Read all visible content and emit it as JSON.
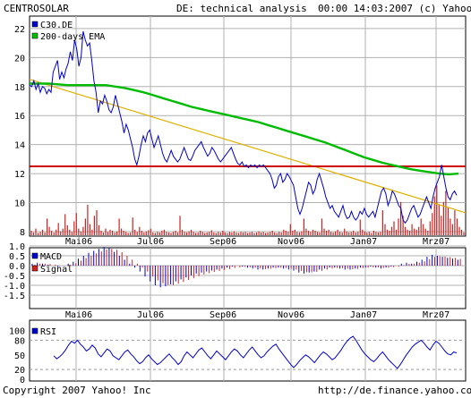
{
  "header": {
    "company": "CENTROSOLAR",
    "title": "DE: technical analysis",
    "timestamp": "00:00 14:03:2007 (c) Yahoo!"
  },
  "footer": {
    "copyright": "Copyright 2007 Yahoo! Inc",
    "url": "http://de.finance.yahoo.com/"
  },
  "colors": {
    "price": "#0000cc",
    "ema": "#00bb00",
    "trend": "#e0b000",
    "resistance": "#cc0000",
    "volume": "#cc2222",
    "macd": "#0000cc",
    "signal": "#cc2222",
    "grid": "#b0b0b0"
  },
  "chart_data": [
    {
      "type": "line",
      "x_tick_labels": [
        "Mai06",
        "Jul06",
        "Sep06",
        "Nov06",
        "Jan07",
        "Mrz07"
      ],
      "ylim": [
        8,
        22.5
      ],
      "y_ticks": [
        8,
        10,
        12,
        14,
        16,
        18,
        20,
        22
      ],
      "grid": true,
      "legend_position": "top-left",
      "series": [
        {
          "name": "C30.DE",
          "kind": "price",
          "values": [
            18.1,
            18.0,
            18.4,
            17.8,
            18.2,
            17.6,
            18.0,
            17.9,
            17.5,
            17.8,
            17.6,
            19.0,
            19.4,
            19.8,
            18.5,
            19.0,
            18.6,
            19.2,
            19.6,
            20.4,
            19.8,
            21.2,
            20.6,
            19.4,
            20.0,
            21.8,
            21.2,
            20.8,
            21.0,
            19.8,
            18.4,
            17.6,
            16.2,
            17.0,
            16.8,
            17.4,
            17.0,
            16.4,
            16.2,
            16.6,
            17.4,
            16.8,
            16.2,
            15.6,
            14.8,
            15.4,
            15.0,
            14.4,
            13.8,
            13.0,
            12.6,
            13.2,
            14.0,
            14.6,
            14.2,
            14.8,
            15.0,
            14.4,
            13.8,
            14.2,
            14.6,
            14.0,
            13.4,
            13.0,
            12.8,
            13.2,
            13.6,
            13.2,
            13.0,
            12.8,
            13.0,
            13.4,
            13.8,
            13.4,
            13.0,
            12.9,
            13.2,
            13.6,
            13.8,
            14.0,
            14.2,
            13.8,
            13.5,
            13.2,
            13.4,
            13.8,
            13.6,
            13.3,
            13.0,
            12.8,
            13.0,
            13.2,
            13.4,
            13.6,
            13.8,
            13.4,
            13.0,
            12.7,
            12.6,
            12.8,
            12.5,
            12.6,
            12.4,
            12.6,
            12.5,
            12.6,
            12.4,
            12.6,
            12.5,
            12.6,
            12.4,
            12.2,
            12.0,
            11.6,
            11.0,
            11.2,
            11.8,
            12.0,
            11.4,
            11.6,
            12.0,
            11.8,
            11.5,
            11.2,
            10.4,
            9.6,
            9.2,
            9.6,
            10.2,
            10.8,
            11.4,
            11.2,
            10.6,
            10.9,
            11.6,
            12.0,
            11.5,
            11.0,
            10.4,
            10.0,
            9.6,
            9.8,
            9.4,
            9.2,
            9.0,
            9.4,
            9.8,
            9.2,
            8.9,
            9.0,
            9.4,
            9.0,
            8.8,
            9.0,
            9.4,
            9.2,
            9.6,
            9.2,
            9.0,
            9.2,
            9.4,
            9.0,
            9.6,
            10.2,
            10.8,
            11.0,
            10.6,
            9.8,
            10.2,
            10.8,
            10.6,
            10.2,
            9.8,
            9.6,
            8.8,
            8.6,
            8.8,
            9.2,
            9.6,
            9.8,
            9.4,
            9.0,
            9.2,
            9.6,
            10.0,
            10.4,
            10.0,
            9.6,
            10.4,
            11.0,
            11.4,
            11.8,
            12.6,
            11.8,
            11.0,
            10.4,
            10.2,
            10.6,
            10.8,
            10.5
          ]
        },
        {
          "name": "200-days EMA",
          "kind": "ema",
          "values": [
            18.2,
            18.2,
            18.2,
            18.15,
            18.1,
            18.1,
            18.1,
            18.1,
            18.1,
            18.0,
            17.9,
            17.75,
            17.6,
            17.4,
            17.2,
            17.0,
            16.8,
            16.6,
            16.45,
            16.3,
            16.15,
            16.0,
            15.85,
            15.7,
            15.55,
            15.35,
            15.15,
            14.95,
            14.75,
            14.55,
            14.35,
            14.15,
            13.9,
            13.65,
            13.4,
            13.15,
            12.95,
            12.75,
            12.6,
            12.45,
            12.3,
            12.2,
            12.1,
            12.0,
            11.95,
            12.0
          ]
        }
      ],
      "resistance_level": 12.5,
      "trendline": [
        18.5,
        9.3
      ]
    },
    {
      "type": "bar",
      "name": "volume",
      "unit": "relative",
      "values": [
        0.08,
        0.05,
        0.12,
        0.04,
        0.06,
        0.1,
        0.05,
        0.3,
        0.15,
        0.08,
        0.05,
        0.1,
        0.22,
        0.07,
        0.12,
        0.38,
        0.18,
        0.1,
        0.06,
        0.25,
        0.4,
        0.12,
        0.07,
        0.15,
        0.3,
        0.55,
        0.2,
        0.1,
        0.35,
        0.45,
        0.18,
        0.08,
        0.05,
        0.12,
        0.06,
        0.1,
        0.08,
        0.05,
        0.07,
        0.3,
        0.12,
        0.08,
        0.06,
        0.04,
        0.05,
        0.32,
        0.1,
        0.06,
        0.15,
        0.08,
        0.05,
        0.07,
        0.09,
        0.12,
        0.05,
        0.04,
        0.06,
        0.05,
        0.08,
        0.1,
        0.06,
        0.05,
        0.04,
        0.06,
        0.08,
        0.05,
        0.35,
        0.1,
        0.06,
        0.05,
        0.07,
        0.1,
        0.06,
        0.04,
        0.05,
        0.08,
        0.06,
        0.04,
        0.05,
        0.06,
        0.09,
        0.05,
        0.04,
        0.06,
        0.05,
        0.08,
        0.05,
        0.04,
        0.06,
        0.05,
        0.07,
        0.05,
        0.04,
        0.06,
        0.05,
        0.06,
        0.04,
        0.05,
        0.06,
        0.04,
        0.05,
        0.07,
        0.05,
        0.06,
        0.04,
        0.05,
        0.06,
        0.08,
        0.05,
        0.04,
        0.06,
        0.05,
        0.1,
        0.08,
        0.06,
        0.2,
        0.08,
        0.1,
        0.06,
        0.05,
        0.07,
        0.3,
        0.12,
        0.08,
        0.06,
        0.1,
        0.08,
        0.06,
        0.05,
        0.3,
        0.12,
        0.08,
        0.1,
        0.06,
        0.05,
        0.07,
        0.1,
        0.06,
        0.05,
        0.12,
        0.07,
        0.05,
        0.06,
        0.08,
        0.05,
        0.06,
        0.28,
        0.1,
        0.07,
        0.05,
        0.06,
        0.04,
        0.08,
        0.06,
        0.05,
        0.06,
        0.45,
        0.2,
        0.1,
        0.08,
        0.15,
        0.25,
        0.1,
        0.3,
        0.6,
        0.35,
        0.15,
        0.1,
        0.08,
        0.2,
        0.12,
        0.1,
        0.15,
        0.3,
        0.2,
        0.12,
        0.08,
        0.25,
        0.4,
        0.7,
        0.9,
        0.55,
        0.35,
        0.6,
        0.8,
        0.5,
        0.3,
        0.2,
        0.45,
        0.3,
        0.15,
        0.1,
        0.05
      ]
    },
    {
      "type": "bar",
      "name": "macd-panel",
      "x_tick_labels": [
        "Mai06",
        "Jul06",
        "Sep06",
        "Nov06",
        "Jan07",
        "Mrz07"
      ],
      "ylim": [
        -1.6,
        1.3
      ],
      "y_ticks": [
        1.0,
        0.5,
        0.0,
        -0.5,
        -1.0,
        -1.5
      ],
      "y_tick_labels": [
        "1.0",
        "0.5",
        "0.0",
        "-0.5",
        "-1.0",
        "-1.5"
      ],
      "legend_position": "top-left",
      "series": [
        {
          "name": "MACD",
          "kind": "macd",
          "values": [
            0.1,
            0.15,
            0.1,
            0.05,
            0.0,
            -0.05,
            0.0,
            0.1,
            0.2,
            0.35,
            0.5,
            0.65,
            0.75,
            0.85,
            0.95,
            0.9,
            0.7,
            0.5,
            0.3,
            0.1,
            -0.1,
            -0.3,
            -0.55,
            -0.8,
            -1.0,
            -1.1,
            -1.05,
            -0.95,
            -0.8,
            -0.7,
            -0.6,
            -0.5,
            -0.4,
            -0.35,
            -0.3,
            -0.25,
            -0.2,
            -0.15,
            -0.1,
            -0.05,
            0.0,
            -0.05,
            -0.1,
            -0.15,
            -0.2,
            -0.2,
            -0.15,
            -0.1,
            -0.1,
            -0.15,
            -0.2,
            -0.25,
            -0.35,
            -0.4,
            -0.35,
            -0.3,
            -0.2,
            -0.15,
            -0.1,
            -0.1,
            -0.15,
            -0.2,
            -0.2,
            -0.15,
            -0.1,
            -0.1,
            -0.05,
            -0.1,
            -0.15,
            -0.1,
            -0.05,
            0.0,
            0.1,
            0.15,
            0.1,
            0.2,
            0.3,
            0.45,
            0.55,
            0.5,
            0.45,
            0.4,
            0.35,
            0.3
          ]
        },
        {
          "name": "Signal",
          "kind": "signal",
          "values": [
            0.05,
            0.1,
            0.1,
            0.08,
            0.05,
            0.0,
            0.0,
            0.05,
            0.12,
            0.25,
            0.38,
            0.5,
            0.62,
            0.72,
            0.82,
            0.85,
            0.8,
            0.68,
            0.5,
            0.3,
            0.1,
            -0.1,
            -0.3,
            -0.55,
            -0.75,
            -0.9,
            -0.98,
            -0.98,
            -0.92,
            -0.83,
            -0.73,
            -0.63,
            -0.53,
            -0.45,
            -0.38,
            -0.32,
            -0.27,
            -0.22,
            -0.17,
            -0.12,
            -0.08,
            -0.06,
            -0.08,
            -0.11,
            -0.15,
            -0.17,
            -0.16,
            -0.13,
            -0.11,
            -0.12,
            -0.16,
            -0.2,
            -0.27,
            -0.33,
            -0.34,
            -0.32,
            -0.26,
            -0.2,
            -0.15,
            -0.12,
            -0.13,
            -0.16,
            -0.18,
            -0.17,
            -0.13,
            -0.11,
            -0.08,
            -0.09,
            -0.12,
            -0.11,
            -0.08,
            -0.04,
            0.03,
            0.09,
            0.1,
            0.15,
            0.22,
            0.33,
            0.44,
            0.47,
            0.46,
            0.43,
            0.39,
            0.34
          ]
        }
      ]
    },
    {
      "type": "line",
      "name": "rsi-panel",
      "x_tick_labels": [
        "Mai06",
        "Jul06",
        "Sep06",
        "Nov06",
        "Jan07",
        "Mrz07"
      ],
      "ylim": [
        0,
        105
      ],
      "y_ticks": [
        0,
        20,
        50,
        80,
        100
      ],
      "reference_lines": [
        20,
        80
      ],
      "legend_position": "top-left",
      "series": [
        {
          "name": "RSI",
          "kind": "rsi",
          "values": [
            48,
            42,
            46,
            52,
            60,
            70,
            78,
            74,
            80,
            72,
            66,
            58,
            62,
            70,
            64,
            52,
            46,
            54,
            62,
            58,
            48,
            44,
            40,
            48,
            56,
            60,
            52,
            46,
            38,
            32,
            36,
            44,
            50,
            42,
            36,
            30,
            34,
            40,
            46,
            52,
            44,
            38,
            30,
            36,
            48,
            56,
            50,
            44,
            52,
            60,
            64,
            56,
            48,
            42,
            50,
            58,
            52,
            46,
            40,
            48,
            56,
            62,
            58,
            50,
            44,
            52,
            60,
            66,
            58,
            50,
            44,
            48,
            56,
            62,
            68,
            72,
            62,
            54,
            46,
            38,
            30,
            24,
            30,
            38,
            44,
            50,
            46,
            40,
            34,
            42,
            50,
            56,
            52,
            46,
            40,
            44,
            52,
            60,
            70,
            78,
            84,
            88,
            80,
            70,
            60,
            52,
            46,
            40,
            36,
            42,
            50,
            56,
            48,
            40,
            34,
            28,
            22,
            30,
            40,
            50,
            58,
            66,
            72,
            76,
            80,
            74,
            66,
            60,
            70,
            78,
            74,
            66,
            58,
            52,
            50,
            56,
            54
          ]
        }
      ]
    }
  ]
}
